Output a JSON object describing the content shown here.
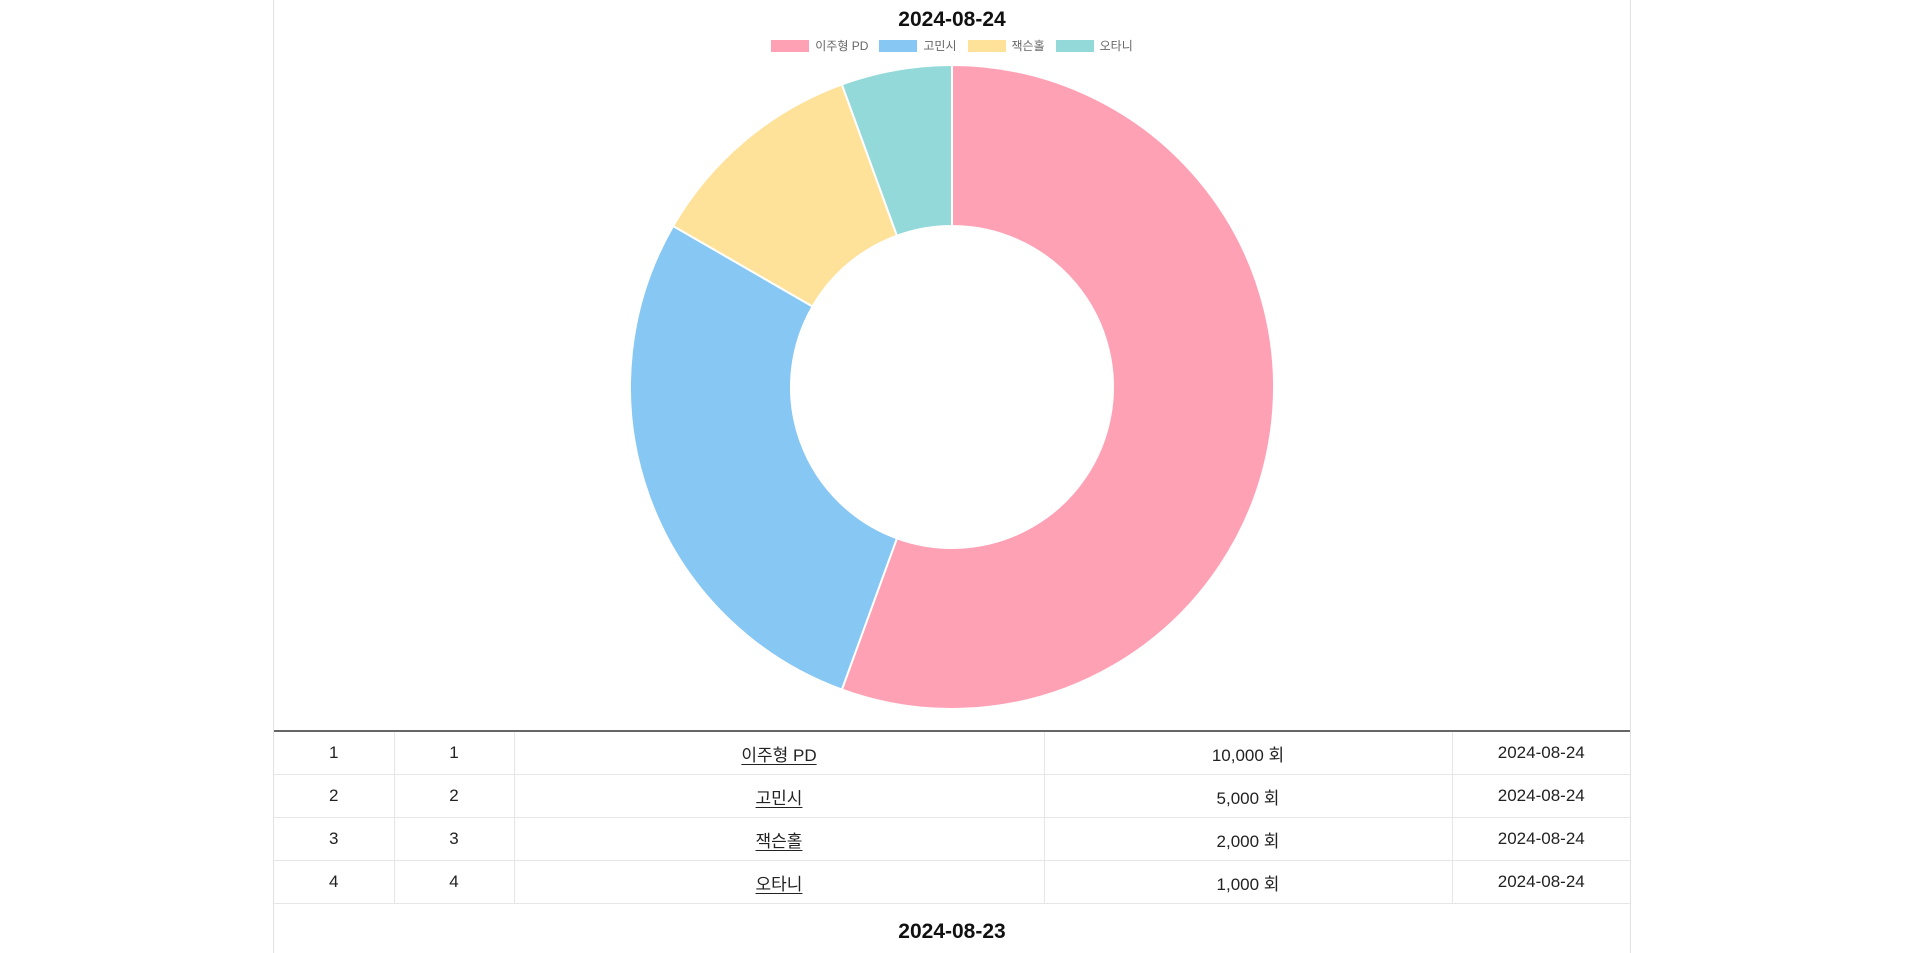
{
  "sections": [
    {
      "date": "2024-08-24",
      "chart_data": {
        "type": "pie",
        "title": "2024-08-24",
        "categories": [
          "이주형 PD",
          "고민시",
          "잭슨홀",
          "오타니"
        ],
        "values": [
          10000,
          5000,
          2000,
          1000
        ],
        "colors": [
          "#ffa1b5",
          "#86c7f3",
          "#ffe29a",
          "#93d9d9"
        ],
        "legend_position": "top"
      },
      "rows": [
        {
          "rank": "1",
          "no": "1",
          "name": "이주형 PD",
          "views": "10,000 회",
          "date": "2024-08-24"
        },
        {
          "rank": "2",
          "no": "2",
          "name": "고민시",
          "views": "5,000 회",
          "date": "2024-08-24"
        },
        {
          "rank": "3",
          "no": "3",
          "name": "잭슨홀",
          "views": "2,000 회",
          "date": "2024-08-24"
        },
        {
          "rank": "4",
          "no": "4",
          "name": "오타니",
          "views": "1,000 회",
          "date": "2024-08-24"
        }
      ]
    }
  ],
  "next_section_title": "2024-08-23"
}
